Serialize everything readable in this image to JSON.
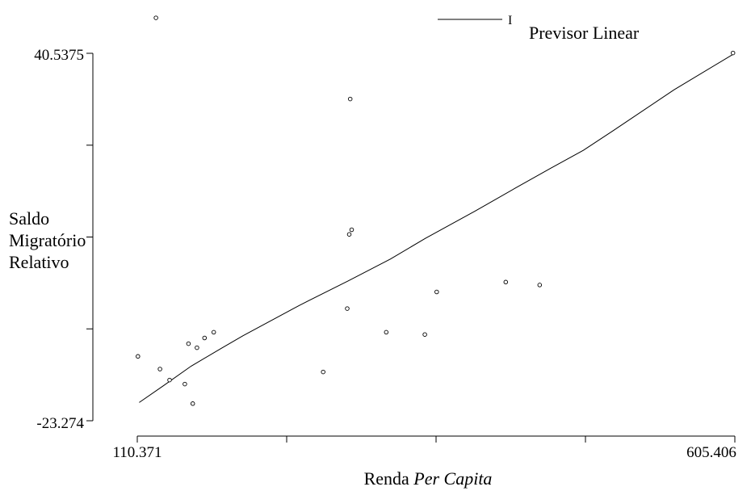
{
  "chart_data": {
    "type": "scatter",
    "title": "",
    "xlabel_main": "Renda ",
    "xlabel_italic": "Per Capita",
    "ylabel_lines": [
      "Saldo",
      "Migratório",
      "Relativo"
    ],
    "x_tick_labels": [
      "110.371",
      "605.406"
    ],
    "y_tick_labels": [
      "40.5375",
      "-23.274"
    ],
    "xlim": [
      110.371,
      605.406
    ],
    "ylim": [
      -23.274,
      40.5375
    ],
    "x_ticks": [
      110.371,
      234.13,
      357.89,
      481.65,
      605.406
    ],
    "y_ticks": [
      -23.274,
      -7.32,
      8.63,
      24.58,
      40.5375
    ],
    "legend": {
      "marker_label": "I",
      "label": "Previsor Linear"
    },
    "series": [
      {
        "name": "Previsor Linear",
        "kind": "line",
        "x": [
          112,
          132,
          155,
          180,
          198,
          245,
          285,
          320,
          349,
          390,
          425,
          453,
          480,
          506,
          555,
          605
        ],
        "y": [
          -20.1,
          -17.2,
          -13.8,
          -10.7,
          -8.5,
          -3.2,
          1.0,
          4.8,
          8.4,
          13.1,
          17.3,
          20.6,
          23.7,
          27.3,
          34.2,
          40.5
        ]
      },
      {
        "name": "",
        "kind": "points",
        "x": [
          110.9,
          125.8,
          129.2,
          137.1,
          149.8,
          152.8,
          156.3,
          159.8,
          166.1,
          173.7,
          264.4,
          284.3,
          286.0,
          286.8,
          288.0,
          316.6,
          348.6,
          358.4,
          415.6,
          443.7,
          603.9
        ],
        "y": [
          -12.1,
          46.7,
          -14.3,
          -16.2,
          -16.9,
          -9.9,
          -20.3,
          -10.6,
          -8.9,
          -7.9,
          -14.8,
          -3.8,
          9.1,
          32.6,
          9.9,
          -7.9,
          -8.3,
          -0.9,
          0.8,
          0.3,
          40.6
        ]
      }
    ]
  }
}
